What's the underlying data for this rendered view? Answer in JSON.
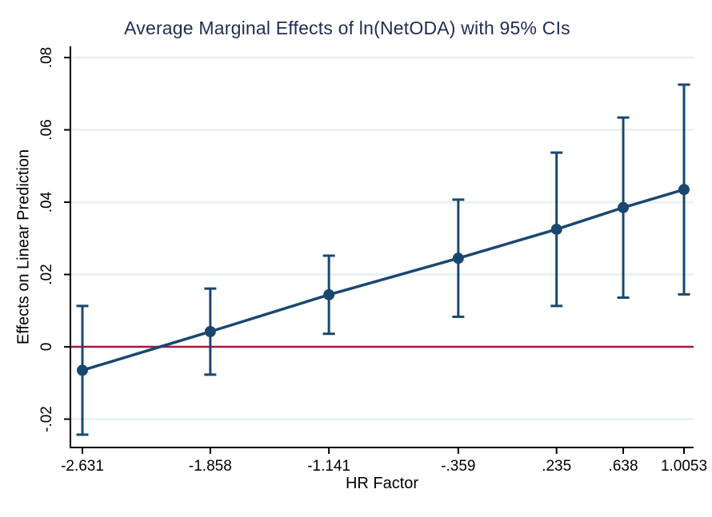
{
  "chart_data": {
    "type": "line",
    "title": "Average Marginal Effects of ln(NetODA) with 95% CIs",
    "xlabel": "HR Factor",
    "ylabel": "Effects on Linear Prediction",
    "x_tick_labels": [
      "-2.631",
      "-1.858",
      "-1.141",
      "-.359",
      ".235",
      ".638",
      "1.0053"
    ],
    "x_tick_values": [
      -2.631,
      -1.858,
      -1.141,
      -0.359,
      0.235,
      0.638,
      1.0053
    ],
    "y_tick_labels": [
      "-.02",
      "0",
      ".02",
      ".04",
      ".06",
      ".08"
    ],
    "y_tick_values": [
      -0.02,
      0,
      0.02,
      0.04,
      0.06,
      0.08
    ],
    "xlim": [
      -2.631,
      1.0053
    ],
    "ylim": [
      -0.028,
      0.083
    ],
    "grid": true,
    "legend": "none",
    "reference_line_y": 0,
    "series": [
      {
        "name": "Average marginal effect of ln(NetODA) with 95% CI",
        "x": [
          -2.631,
          -1.858,
          -1.141,
          -0.359,
          0.235,
          0.638,
          1.0053
        ],
        "y": [
          -0.0065,
          0.0042,
          0.0144,
          0.0245,
          0.0325,
          0.0385,
          0.0435
        ],
        "ci_low": [
          -0.0243,
          -0.0077,
          0.0036,
          0.0083,
          0.0113,
          0.0136,
          0.0145
        ],
        "ci_high": [
          0.0113,
          0.0161,
          0.0252,
          0.0407,
          0.0537,
          0.0634,
          0.0725
        ]
      }
    ],
    "colors": {
      "series": "#1a476f",
      "reference_line": "#a41c3c",
      "gridline": "#eaf2f3",
      "axis": "#000000",
      "title_text": "#1f2d50"
    }
  }
}
